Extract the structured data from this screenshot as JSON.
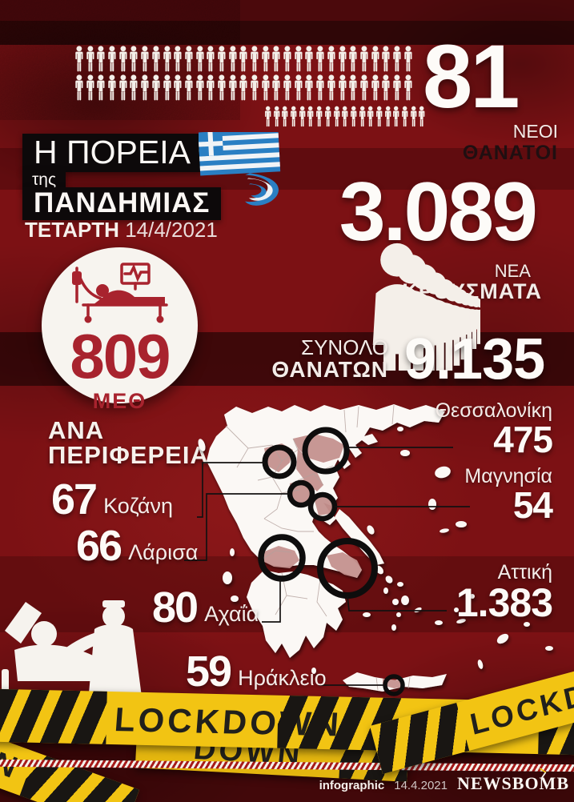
{
  "title": {
    "line1": "Η ΠΟΡΕΙΑ",
    "line2": "της",
    "line3": "ΠΑΝΔΗΜΙΑΣ",
    "day": "ΤΕΤΑΡΤΗ",
    "date": "14/4/2021"
  },
  "stats": {
    "new_deaths": {
      "value": "81",
      "label1": "ΝΕΟΙ",
      "label2": "ΘΑΝΑΤΟΙ",
      "icon_rows": [
        31,
        31,
        19
      ]
    },
    "new_cases": {
      "value": "3.089",
      "label1": "ΝΕΑ",
      "label2": "ΚΡΟΥΣΜΑΤΑ",
      "queue_count": 15
    },
    "icu": {
      "value": "809",
      "label": "ΜΕΘ"
    },
    "total_deaths": {
      "label1": "ΣΥΝΟΛΟ",
      "label2": "ΘΑΝΑΤΩΝ",
      "value": "9.135"
    }
  },
  "regions": {
    "heading1": "ΑΝΑ",
    "heading2": "ΠΕΡΙΦΕΡΕΙΑ",
    "left": [
      {
        "value": "67",
        "name": "Κοζάνη"
      },
      {
        "value": "66",
        "name": "Λάρισα"
      },
      {
        "value": "80",
        "name": "Αχαΐα"
      },
      {
        "value": "59",
        "name": "Ηράκλειο"
      }
    ],
    "right": [
      {
        "name": "Θεσσαλονίκη",
        "value": "475"
      },
      {
        "name": "Μαγνησία",
        "value": "54"
      },
      {
        "name": "Αττική",
        "value": "1.383"
      }
    ]
  },
  "lockdown": {
    "text": "LOCKDOWN",
    "partial_behind": "DOWN",
    "partial_left": "N"
  },
  "footer": {
    "credit": "infographic",
    "date": "14.4.2021",
    "brand": "NEWSBOMB"
  },
  "colors": {
    "background": "#7c1114",
    "accent_red": "#a8232e",
    "tape_yellow": "#f2c413",
    "map_highlight": "#c5928f",
    "dark_text": "#200f11",
    "land": "#fbf8f5"
  },
  "chart_data": {
    "type": "table",
    "title": "Η ΠΟΡΕΙΑ της ΠΑΝΔΗΜΙΑΣ",
    "date": "ΤΕΤΑΡΤΗ 14/4/2021",
    "stats": [
      {
        "label": "ΝΕΟΙ ΘΑΝΑΤΟΙ",
        "value": 81
      },
      {
        "label": "ΝΕΑ ΚΡΟΥΣΜΑΤΑ",
        "value": 3089
      },
      {
        "label": "ΜΕΘ",
        "value": 809
      },
      {
        "label": "ΣΥΝΟΛΟ ΘΑΝΑΤΩΝ",
        "value": 9135
      }
    ],
    "regions_cases": [
      {
        "name": "Αττική",
        "value": 1383
      },
      {
        "name": "Θεσσαλονίκη",
        "value": 475
      },
      {
        "name": "Αχαΐα",
        "value": 80
      },
      {
        "name": "Κοζάνη",
        "value": 67
      },
      {
        "name": "Λάρισα",
        "value": 66
      },
      {
        "name": "Ηράκλειο",
        "value": 59
      },
      {
        "name": "Μαγνησία",
        "value": 54
      }
    ]
  }
}
